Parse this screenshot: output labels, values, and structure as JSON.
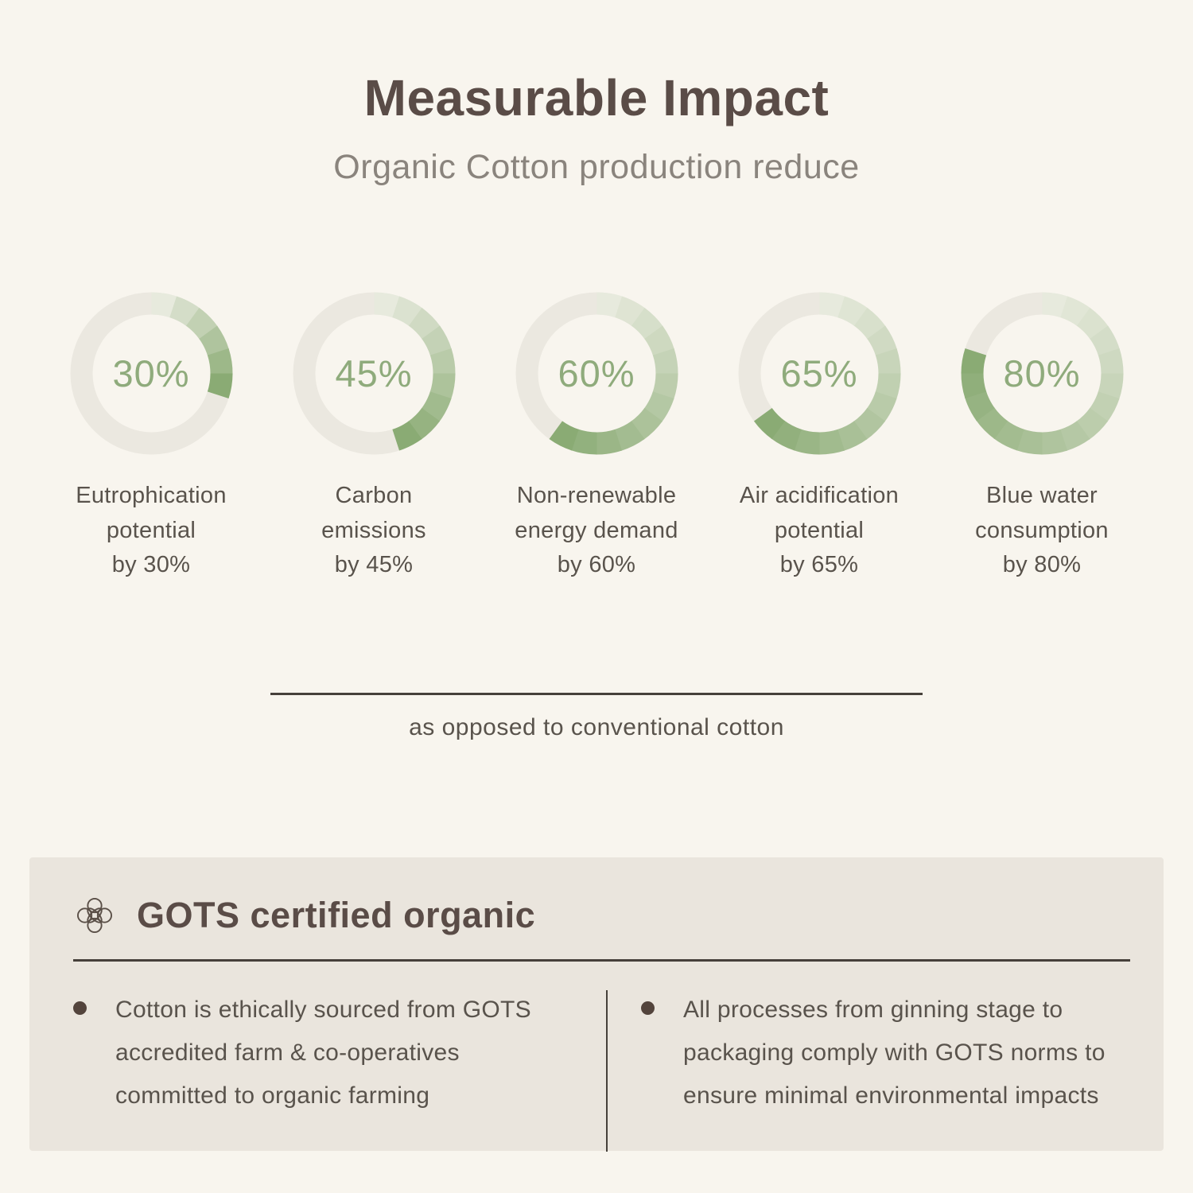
{
  "header": {
    "title": "Measurable Impact",
    "subtitle": "Organic Cotton production reduce"
  },
  "chart_data": {
    "type": "donut",
    "title": "Measurable Impact",
    "subtitle": "Organic Cotton production reduce",
    "unit": "%",
    "arc_start": "top",
    "direction": "clockwise",
    "segment_step_percent": 5,
    "charts": [
      {
        "value": 30,
        "display": "30%",
        "label": "Eutrophication potential by 30%",
        "label_lines": [
          "Eutrophication",
          "potential",
          "by 30%"
        ]
      },
      {
        "value": 45,
        "display": "45%",
        "label": "Carbon emissions by 45%",
        "label_lines": [
          "Carbon",
          "emissions",
          "by 45%"
        ]
      },
      {
        "value": 60,
        "display": "60%",
        "label": "Non-renewable energy demand by 60%",
        "label_lines": [
          "Non-renewable",
          "energy demand",
          "by 60%"
        ]
      },
      {
        "value": 65,
        "display": "65%",
        "label": "Air acidification potential by 65%",
        "label_lines": [
          "Air acidification",
          "potential",
          "by 65%"
        ]
      },
      {
        "value": 80,
        "display": "80%",
        "label": "Blue water consumption by 80%",
        "label_lines": [
          "Blue water",
          "consumption",
          "by 80%"
        ]
      }
    ],
    "note": "as opposed to conventional cotton"
  },
  "footnote": {
    "text": "as opposed to conventional cotton"
  },
  "gots": {
    "icon": "knot-emblem-icon",
    "title": "GOTS certified organic",
    "points": [
      "Cotton is ethically sourced from GOTS accredited farm & co-operatives committed to organic farming",
      "All processes from ginning stage to packaging comply with GOTS norms to ensure minimal environmental impacts"
    ]
  },
  "colors": {
    "page_bg": "#f8f5ee",
    "panel_bg": "#eae5dd",
    "ring_track": "#ebe8e0",
    "ring_green_start": "#e7eadd",
    "ring_green_end": "#8aab74",
    "percent_text": "#8fab7c",
    "title_text": "#5a4c47",
    "subtitle_text": "#8a847d",
    "body_text": "#59534c",
    "rule": "#46403a",
    "bullet": "#53443c"
  }
}
